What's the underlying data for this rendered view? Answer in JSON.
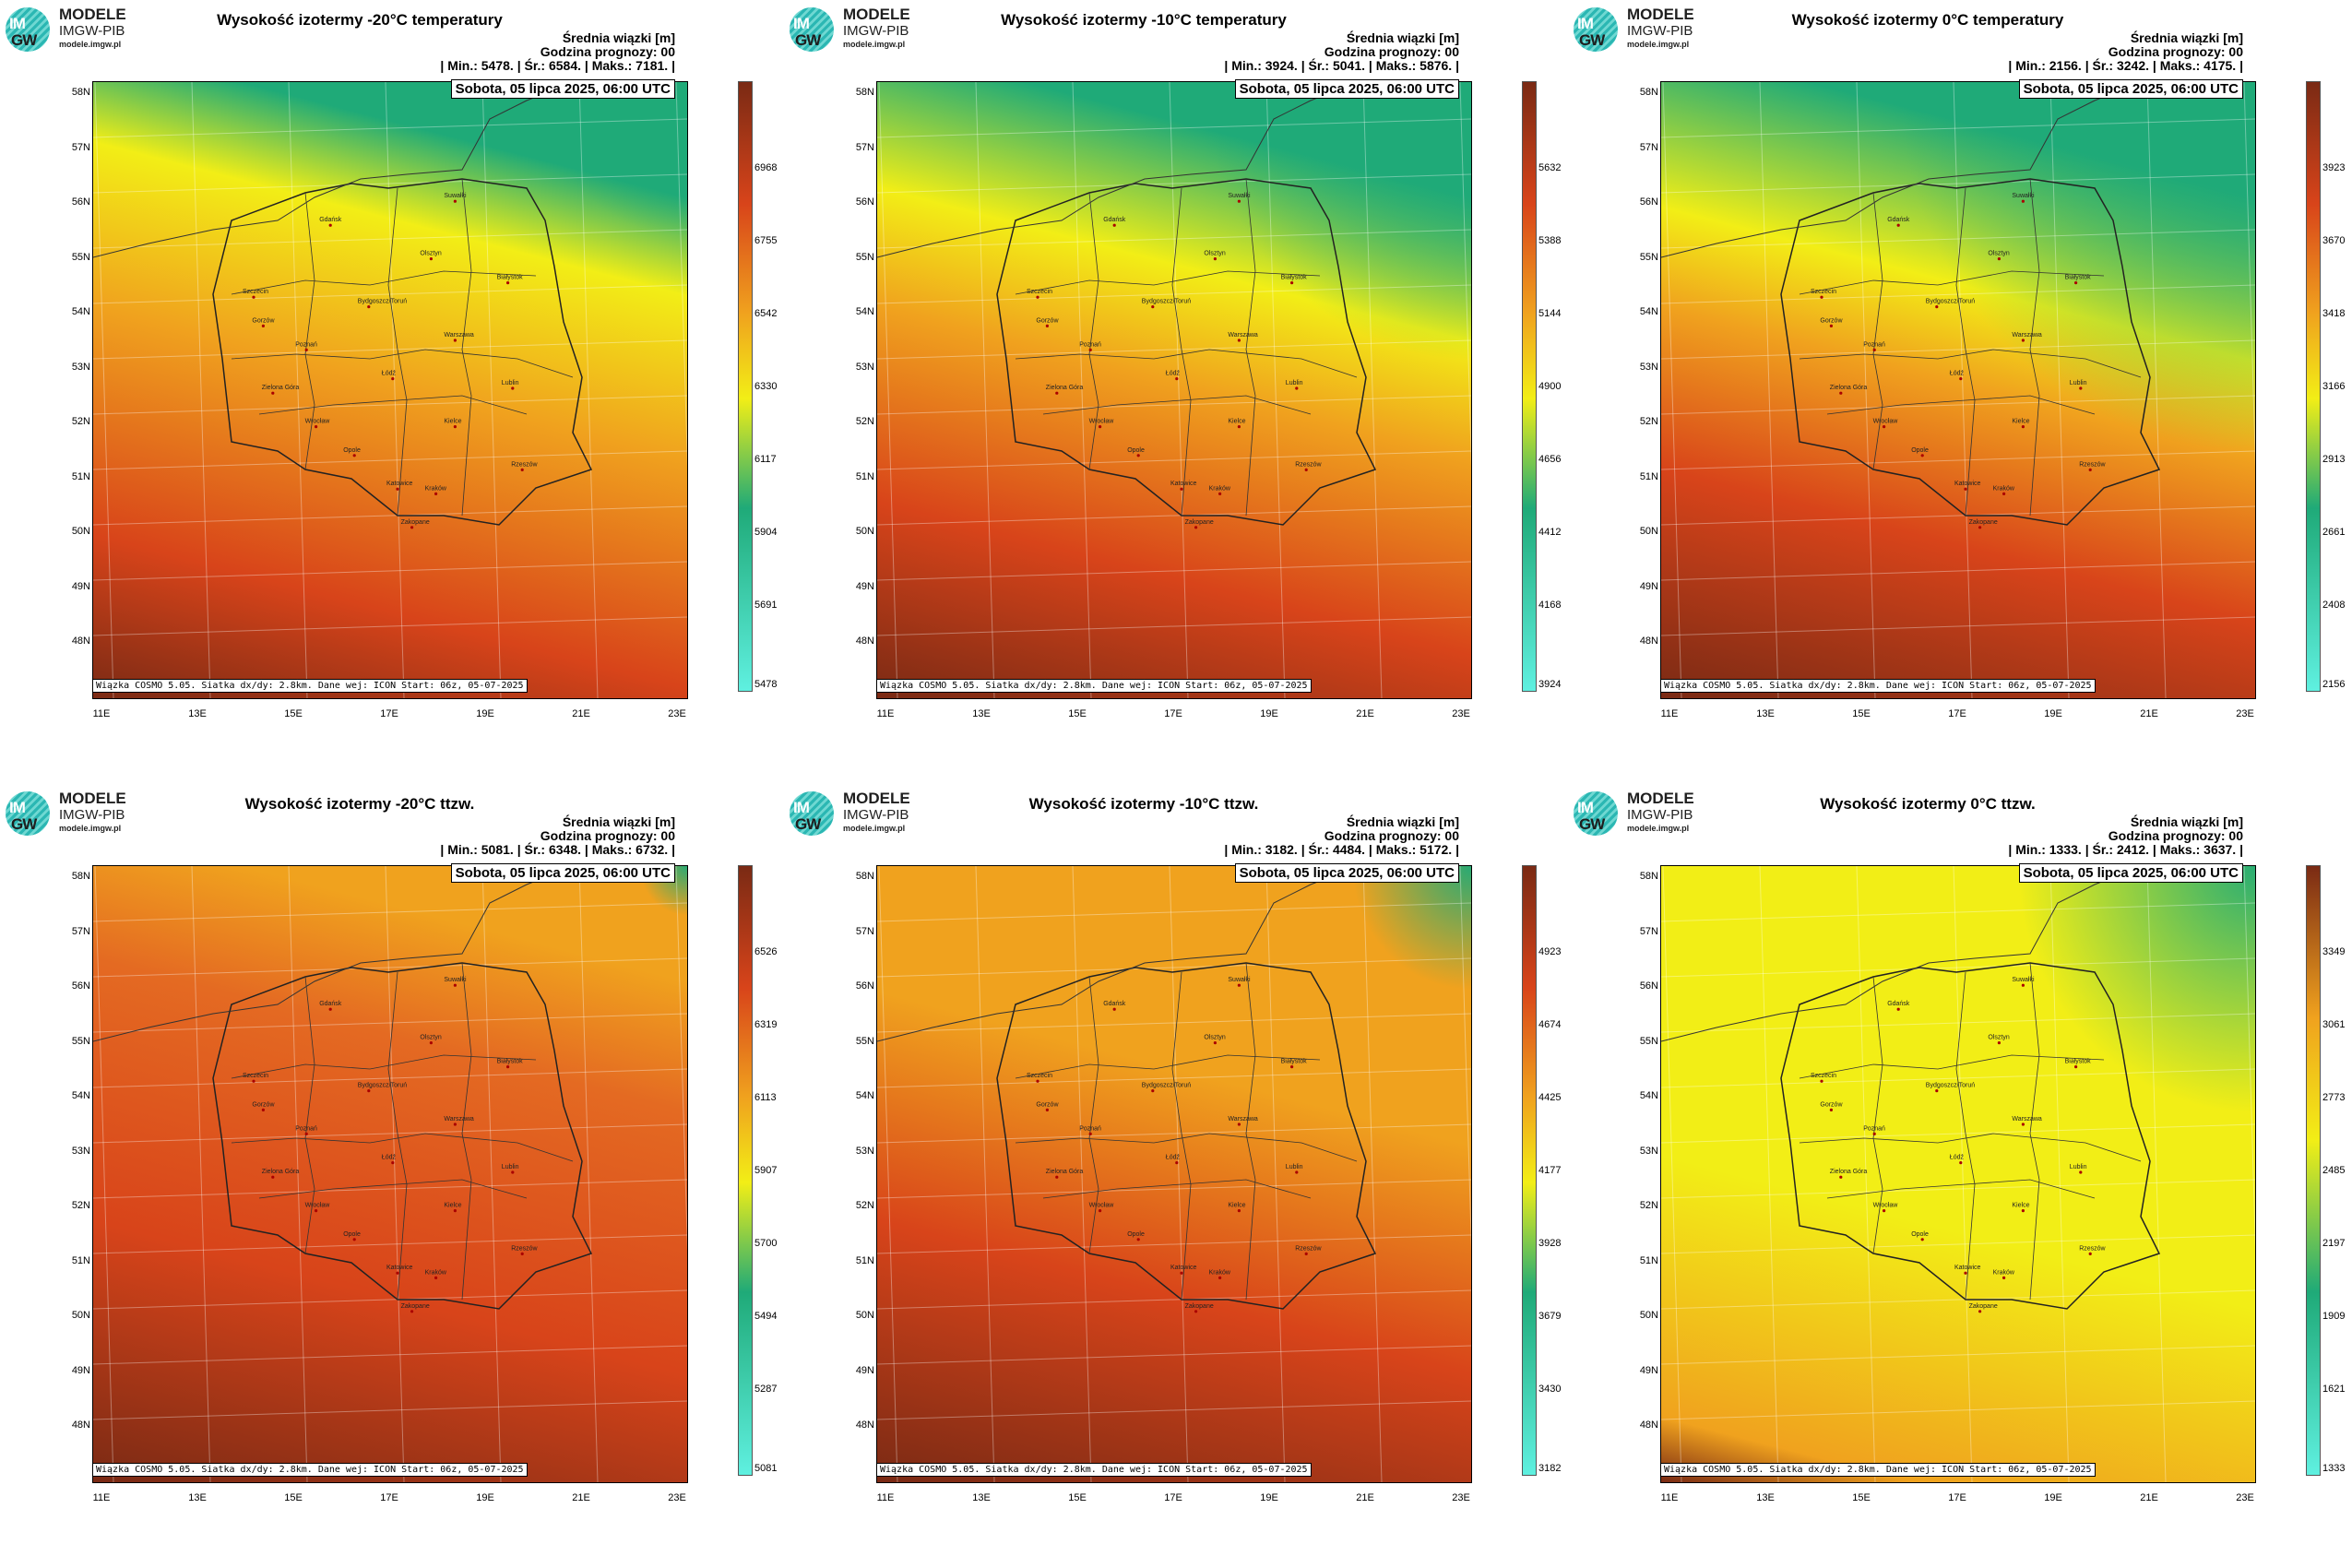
{
  "logo": {
    "circle_top": "IM",
    "circle_bottom": "GW",
    "name": "MODELE",
    "org": "IMGW-PIB",
    "url": "modele.imgw.pl"
  },
  "common": {
    "stats_header": "Średnia wiązki [m]",
    "forecast_hour": "Godzina prognozy: 00",
    "date": "Sobota, 05 lipca 2025, 06:00 UTC",
    "credit": "Wiązka COSMO 5.05. Siatka dx/dy: 2.8km. Dane wej: ICON Start: 06z, 05-07-2025",
    "lat_labels": [
      "58N",
      "57N",
      "56N",
      "55N",
      "54N",
      "53N",
      "52N",
      "51N",
      "50N",
      "49N",
      "48N"
    ],
    "lon_labels": [
      "11E",
      "13E",
      "15E",
      "17E",
      "19E",
      "21E",
      "23E"
    ],
    "cities": [
      "Gdańsk",
      "Suwałki",
      "Olsztyn",
      "Szczecin",
      "Białystok",
      "Bydgoszcz/Toruń",
      "Gorzów",
      "Poznań",
      "Warszawa",
      "Zielona Góra",
      "Łódź",
      "Lublin",
      "Wrocław",
      "Kielce",
      "Opole",
      "Rzeszów",
      "Katowice",
      "Kraków",
      "Zakopane"
    ],
    "colors": {
      "green": "#1faa78",
      "yellow": "#f2ee16",
      "orange": "#f0a21e",
      "red": "#d8441a",
      "darkred": "#7a2a14"
    }
  },
  "panels": [
    {
      "title": "Wysokość izotermy -20°C temperatury",
      "min_line": "| Min.:   5478. | Śr.:   6584. | Maks.:   7181. |",
      "colorbar": [
        "6968",
        "6755",
        "6542",
        "6330",
        "6117",
        "5904",
        "5691",
        "5478"
      ]
    },
    {
      "title": "Wysokość izotermy -10°C temperatury",
      "min_line": "| Min.:   3924. | Śr.:   5041. | Maks.:   5876. |",
      "colorbar": [
        "5632",
        "5388",
        "5144",
        "4900",
        "4656",
        "4412",
        "4168",
        "3924"
      ]
    },
    {
      "title": "Wysokość izotermy 0°C temperatury",
      "min_line": "| Min.:   2156. | Śr.:   3242. | Maks.:   4175. |",
      "colorbar": [
        "3923",
        "3670",
        "3418",
        "3166",
        "2913",
        "2661",
        "2408",
        "2156"
      ]
    },
    {
      "title": "Wysokość izotermy -20°C ttzw.",
      "min_line": "| Min.:   5081. | Śr.:   6348. | Maks.:   6732. |",
      "colorbar": [
        "6526",
        "6319",
        "6113",
        "5907",
        "5700",
        "5494",
        "5287",
        "5081"
      ]
    },
    {
      "title": "Wysokość izotermy -10°C ttzw.",
      "min_line": "| Min.:   3182. | Śr.:   4484. | Maks.:   5172. |",
      "colorbar": [
        "4923",
        "4674",
        "4425",
        "4177",
        "3928",
        "3679",
        "3430",
        "3182"
      ]
    },
    {
      "title": "Wysokość izotermy 0°C ttzw.",
      "min_line": "| Min.:   1333. | Śr.:   2412. | Maks.:   3637. |",
      "colorbar": [
        "3349",
        "3061",
        "2773",
        "2485",
        "2197",
        "1909",
        "1621",
        "1333"
      ]
    }
  ]
}
